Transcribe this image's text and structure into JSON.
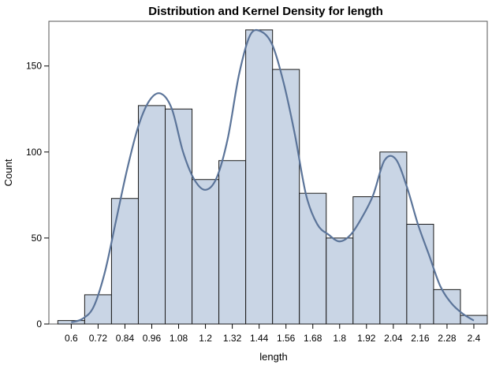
{
  "chart_data": {
    "type": "bar",
    "title": "Distribution and Kernel Density for length",
    "xlabel": "length",
    "ylabel": "Count",
    "x_ticks": [
      "0.6",
      "0.72",
      "0.84",
      "0.96",
      "1.08",
      "1.2",
      "1.32",
      "1.44",
      "1.56",
      "1.68",
      "1.8",
      "1.92",
      "2.04",
      "2.16",
      "2.28",
      "2.4"
    ],
    "y_ticks": [
      "0",
      "50",
      "100",
      "150"
    ],
    "xlim": [
      0.5,
      2.46
    ],
    "ylim": [
      0,
      176
    ],
    "bin_width": 0.12,
    "bins": [
      {
        "center": 0.6,
        "count": 2
      },
      {
        "center": 0.72,
        "count": 17
      },
      {
        "center": 0.84,
        "count": 73
      },
      {
        "center": 0.96,
        "count": 127
      },
      {
        "center": 1.08,
        "count": 125
      },
      {
        "center": 1.2,
        "count": 84
      },
      {
        "center": 1.32,
        "count": 95
      },
      {
        "center": 1.44,
        "count": 171
      },
      {
        "center": 1.56,
        "count": 148
      },
      {
        "center": 1.68,
        "count": 76
      },
      {
        "center": 1.8,
        "count": 50
      },
      {
        "center": 1.92,
        "count": 74
      },
      {
        "center": 2.04,
        "count": 100
      },
      {
        "center": 2.16,
        "count": 58
      },
      {
        "center": 2.28,
        "count": 20
      },
      {
        "center": 2.4,
        "count": 5
      }
    ],
    "density_curve": {
      "x": [
        0.6,
        0.65,
        0.7,
        0.75,
        0.8,
        0.85,
        0.9,
        0.95,
        1.0,
        1.05,
        1.1,
        1.15,
        1.2,
        1.25,
        1.3,
        1.35,
        1.4,
        1.45,
        1.5,
        1.55,
        1.6,
        1.65,
        1.7,
        1.75,
        1.8,
        1.85,
        1.9,
        1.95,
        2.0,
        2.05,
        2.1,
        2.15,
        2.2,
        2.25,
        2.3,
        2.35,
        2.4
      ],
      "y": [
        1,
        3,
        10,
        30,
        60,
        90,
        115,
        130,
        134,
        125,
        100,
        84,
        78,
        85,
        108,
        145,
        168,
        170,
        162,
        140,
        110,
        75,
        58,
        52,
        48,
        52,
        62,
        75,
        95,
        96,
        80,
        58,
        40,
        22,
        12,
        6,
        2
      ]
    },
    "grid": false,
    "legend": "none",
    "colors": {
      "bar_fill": "#c9d5e5",
      "bar_stroke": "#1a1a1a",
      "curve": "#5b7499",
      "frame": "#555555"
    }
  }
}
